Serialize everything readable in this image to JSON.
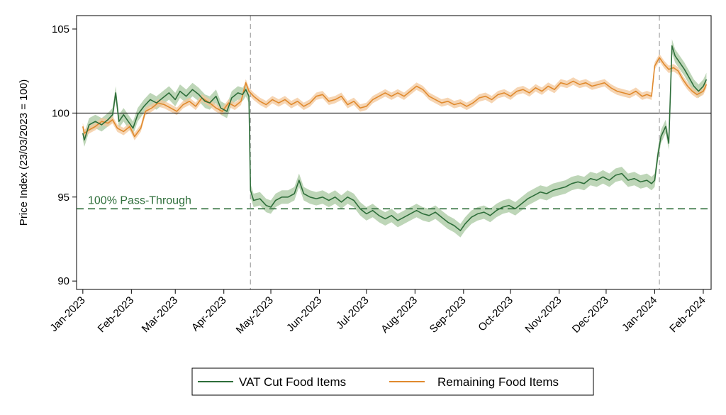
{
  "chart_data": {
    "type": "line",
    "ylabel": "Price Index (23/03/2023 = 100)",
    "xlabel": "",
    "ylim": [
      89.5,
      105.8
    ],
    "xlim": [
      "2022-12-28",
      "2024-02-06"
    ],
    "yticks": [
      90,
      95,
      100,
      105
    ],
    "xticks": [
      "2023-01-01",
      "2023-02-01",
      "2023-03-01",
      "2023-04-01",
      "2023-05-01",
      "2023-06-01",
      "2023-07-01",
      "2023-08-01",
      "2023-09-01",
      "2023-10-01",
      "2023-11-01",
      "2023-12-01",
      "2024-01-01",
      "2024-02-01"
    ],
    "xtick_labels": [
      "Jan-2023",
      "Feb-2023",
      "Mar-2023",
      "Apr-2023",
      "May-2023",
      "Jun-2023",
      "Jul-2023",
      "Aug-2023",
      "Sep-2023",
      "Oct-2023",
      "Nov-2023",
      "Dec-2023",
      "Jan-2024",
      "Feb-2024"
    ],
    "reference_line_y": 100,
    "vertical_lines": [
      "2023-04-18",
      "2024-01-04"
    ],
    "pass_through_level": 94.3,
    "annotation": "100% Pass-Through",
    "grid": false,
    "legend_position": "bottom",
    "colors": {
      "vat": "#2e6e3a",
      "vat_band": "#a8c8a0",
      "rem": "#e08a2e",
      "rem_band": "#f3c79a",
      "reference": "#000000",
      "vline": "#aaaaaa",
      "pass_through": "#2e6e3a"
    },
    "series": [
      {
        "name": "VAT Cut Food Items",
        "points": [
          [
            "2023-01-01",
            98.8
          ],
          [
            "2023-01-02",
            98.4
          ],
          [
            "2023-01-05",
            99.3
          ],
          [
            "2023-01-09",
            99.5
          ],
          [
            "2023-01-13",
            99.3
          ],
          [
            "2023-01-17",
            99.6
          ],
          [
            "2023-01-20",
            99.9
          ],
          [
            "2023-01-22",
            101.2
          ],
          [
            "2023-01-24",
            99.5
          ],
          [
            "2023-01-27",
            99.9
          ],
          [
            "2023-01-30",
            99.5
          ],
          [
            "2023-02-02",
            99.1
          ],
          [
            "2023-02-05",
            99.9
          ],
          [
            "2023-02-09",
            100.4
          ],
          [
            "2023-02-13",
            100.8
          ],
          [
            "2023-02-17",
            100.6
          ],
          [
            "2023-02-21",
            100.9
          ],
          [
            "2023-02-25",
            101.2
          ],
          [
            "2023-03-01",
            100.8
          ],
          [
            "2023-03-04",
            101.3
          ],
          [
            "2023-03-08",
            101.0
          ],
          [
            "2023-03-12",
            101.4
          ],
          [
            "2023-03-16",
            101.1
          ],
          [
            "2023-03-20",
            100.7
          ],
          [
            "2023-03-23",
            100.6
          ],
          [
            "2023-03-27",
            101.0
          ],
          [
            "2023-03-30",
            100.3
          ],
          [
            "2023-04-03",
            100.1
          ],
          [
            "2023-04-06",
            100.9
          ],
          [
            "2023-04-10",
            101.2
          ],
          [
            "2023-04-13",
            101.1
          ],
          [
            "2023-04-15",
            101.4
          ],
          [
            "2023-04-17",
            101.0
          ],
          [
            "2023-04-18",
            95.4
          ],
          [
            "2023-04-20",
            94.8
          ],
          [
            "2023-04-24",
            94.9
          ],
          [
            "2023-04-28",
            94.5
          ],
          [
            "2023-05-01",
            94.4
          ],
          [
            "2023-05-04",
            94.8
          ],
          [
            "2023-05-08",
            95.0
          ],
          [
            "2023-05-12",
            95.0
          ],
          [
            "2023-05-16",
            95.2
          ],
          [
            "2023-05-19",
            96.0
          ],
          [
            "2023-05-22",
            95.2
          ],
          [
            "2023-05-26",
            95.0
          ],
          [
            "2023-05-30",
            94.9
          ],
          [
            "2023-06-03",
            95.0
          ],
          [
            "2023-06-07",
            94.8
          ],
          [
            "2023-06-11",
            95.0
          ],
          [
            "2023-06-15",
            94.7
          ],
          [
            "2023-06-19",
            95.0
          ],
          [
            "2023-06-23",
            94.8
          ],
          [
            "2023-06-27",
            94.3
          ],
          [
            "2023-07-01",
            94.0
          ],
          [
            "2023-07-05",
            94.2
          ],
          [
            "2023-07-09",
            93.9
          ],
          [
            "2023-07-13",
            93.7
          ],
          [
            "2023-07-17",
            93.9
          ],
          [
            "2023-07-21",
            93.6
          ],
          [
            "2023-07-25",
            93.8
          ],
          [
            "2023-07-29",
            94.0
          ],
          [
            "2023-08-02",
            94.2
          ],
          [
            "2023-08-06",
            94.0
          ],
          [
            "2023-08-10",
            93.9
          ],
          [
            "2023-08-14",
            94.1
          ],
          [
            "2023-08-18",
            93.8
          ],
          [
            "2023-08-22",
            93.5
          ],
          [
            "2023-08-26",
            93.3
          ],
          [
            "2023-08-30",
            93.0
          ],
          [
            "2023-09-02",
            93.4
          ],
          [
            "2023-09-06",
            93.8
          ],
          [
            "2023-09-10",
            94.0
          ],
          [
            "2023-09-14",
            94.1
          ],
          [
            "2023-09-18",
            93.9
          ],
          [
            "2023-09-22",
            94.2
          ],
          [
            "2023-09-26",
            94.4
          ],
          [
            "2023-09-30",
            94.5
          ],
          [
            "2023-10-04",
            94.3
          ],
          [
            "2023-10-08",
            94.6
          ],
          [
            "2023-10-12",
            94.9
          ],
          [
            "2023-10-16",
            95.1
          ],
          [
            "2023-10-20",
            95.3
          ],
          [
            "2023-10-24",
            95.2
          ],
          [
            "2023-10-28",
            95.4
          ],
          [
            "2023-11-01",
            95.5
          ],
          [
            "2023-11-05",
            95.6
          ],
          [
            "2023-11-09",
            95.8
          ],
          [
            "2023-11-13",
            95.9
          ],
          [
            "2023-11-17",
            95.8
          ],
          [
            "2023-11-21",
            96.1
          ],
          [
            "2023-11-25",
            96.0
          ],
          [
            "2023-11-29",
            96.2
          ],
          [
            "2023-12-03",
            96.0
          ],
          [
            "2023-12-07",
            96.3
          ],
          [
            "2023-12-11",
            96.4
          ],
          [
            "2023-12-15",
            96.0
          ],
          [
            "2023-12-19",
            96.1
          ],
          [
            "2023-12-23",
            95.9
          ],
          [
            "2023-12-27",
            96.0
          ],
          [
            "2023-12-30",
            95.8
          ],
          [
            "2024-01-01",
            96.0
          ],
          [
            "2024-01-03",
            97.5
          ],
          [
            "2024-01-05",
            98.6
          ],
          [
            "2024-01-08",
            99.2
          ],
          [
            "2024-01-10",
            98.2
          ],
          [
            "2024-01-12",
            104.0
          ],
          [
            "2024-01-14",
            103.4
          ],
          [
            "2024-01-17",
            103.0
          ],
          [
            "2024-01-20",
            102.6
          ],
          [
            "2024-01-23",
            102.1
          ],
          [
            "2024-01-26",
            101.6
          ],
          [
            "2024-01-29",
            101.3
          ],
          [
            "2024-02-01",
            101.6
          ],
          [
            "2024-02-03",
            102.0
          ]
        ]
      },
      {
        "name": "Remaining Food Items",
        "points": [
          [
            "2023-01-01",
            99.2
          ],
          [
            "2023-01-02",
            98.8
          ],
          [
            "2023-01-05",
            99.0
          ],
          [
            "2023-01-09",
            99.2
          ],
          [
            "2023-01-13",
            99.5
          ],
          [
            "2023-01-17",
            99.4
          ],
          [
            "2023-01-20",
            99.6
          ],
          [
            "2023-01-23",
            99.1
          ],
          [
            "2023-01-27",
            98.9
          ],
          [
            "2023-01-31",
            99.2
          ],
          [
            "2023-02-03",
            98.6
          ],
          [
            "2023-02-07",
            99.1
          ],
          [
            "2023-02-10",
            100.1
          ],
          [
            "2023-02-14",
            100.3
          ],
          [
            "2023-02-18",
            100.6
          ],
          [
            "2023-02-22",
            100.5
          ],
          [
            "2023-02-26",
            100.3
          ],
          [
            "2023-03-02",
            100.1
          ],
          [
            "2023-03-06",
            100.5
          ],
          [
            "2023-03-10",
            100.7
          ],
          [
            "2023-03-14",
            100.4
          ],
          [
            "2023-03-18",
            100.9
          ],
          [
            "2023-03-23",
            100.6
          ],
          [
            "2023-03-27",
            100.3
          ],
          [
            "2023-03-31",
            100.1
          ],
          [
            "2023-04-04",
            100.6
          ],
          [
            "2023-04-08",
            100.4
          ],
          [
            "2023-04-12",
            100.7
          ],
          [
            "2023-04-15",
            101.8
          ],
          [
            "2023-04-17",
            101.3
          ],
          [
            "2023-04-20",
            101.0
          ],
          [
            "2023-04-24",
            100.7
          ],
          [
            "2023-04-28",
            100.5
          ],
          [
            "2023-05-02",
            100.8
          ],
          [
            "2023-05-06",
            100.6
          ],
          [
            "2023-05-10",
            100.8
          ],
          [
            "2023-05-14",
            100.5
          ],
          [
            "2023-05-18",
            100.7
          ],
          [
            "2023-05-22",
            100.4
          ],
          [
            "2023-05-26",
            100.6
          ],
          [
            "2023-05-30",
            101.0
          ],
          [
            "2023-06-03",
            101.1
          ],
          [
            "2023-06-07",
            100.7
          ],
          [
            "2023-06-11",
            100.8
          ],
          [
            "2023-06-15",
            101.0
          ],
          [
            "2023-06-19",
            100.5
          ],
          [
            "2023-06-23",
            100.7
          ],
          [
            "2023-06-27",
            100.3
          ],
          [
            "2023-07-01",
            100.4
          ],
          [
            "2023-07-05",
            100.8
          ],
          [
            "2023-07-09",
            101.0
          ],
          [
            "2023-07-13",
            101.2
          ],
          [
            "2023-07-17",
            101.0
          ],
          [
            "2023-07-21",
            101.2
          ],
          [
            "2023-07-25",
            101.0
          ],
          [
            "2023-07-29",
            101.3
          ],
          [
            "2023-08-02",
            101.6
          ],
          [
            "2023-08-06",
            101.4
          ],
          [
            "2023-08-10",
            101.0
          ],
          [
            "2023-08-14",
            100.8
          ],
          [
            "2023-08-18",
            100.6
          ],
          [
            "2023-08-22",
            100.7
          ],
          [
            "2023-08-26",
            100.5
          ],
          [
            "2023-08-30",
            100.6
          ],
          [
            "2023-09-03",
            100.4
          ],
          [
            "2023-09-07",
            100.6
          ],
          [
            "2023-09-11",
            100.9
          ],
          [
            "2023-09-15",
            101.0
          ],
          [
            "2023-09-19",
            100.8
          ],
          [
            "2023-09-23",
            101.1
          ],
          [
            "2023-09-27",
            101.2
          ],
          [
            "2023-10-01",
            101.0
          ],
          [
            "2023-10-05",
            101.3
          ],
          [
            "2023-10-09",
            101.4
          ],
          [
            "2023-10-13",
            101.2
          ],
          [
            "2023-10-17",
            101.5
          ],
          [
            "2023-10-21",
            101.3
          ],
          [
            "2023-10-25",
            101.6
          ],
          [
            "2023-10-29",
            101.4
          ],
          [
            "2023-11-02",
            101.8
          ],
          [
            "2023-11-06",
            101.7
          ],
          [
            "2023-11-10",
            101.9
          ],
          [
            "2023-11-14",
            101.7
          ],
          [
            "2023-11-18",
            101.8
          ],
          [
            "2023-11-22",
            101.6
          ],
          [
            "2023-11-26",
            101.7
          ],
          [
            "2023-11-30",
            101.8
          ],
          [
            "2023-12-04",
            101.5
          ],
          [
            "2023-12-08",
            101.3
          ],
          [
            "2023-12-12",
            101.2
          ],
          [
            "2023-12-16",
            101.1
          ],
          [
            "2023-12-20",
            101.3
          ],
          [
            "2023-12-24",
            101.0
          ],
          [
            "2023-12-27",
            101.1
          ],
          [
            "2023-12-30",
            101.0
          ],
          [
            "2024-01-01",
            102.8
          ],
          [
            "2024-01-04",
            103.3
          ],
          [
            "2024-01-07",
            102.9
          ],
          [
            "2024-01-10",
            102.6
          ],
          [
            "2024-01-13",
            102.7
          ],
          [
            "2024-01-16",
            102.5
          ],
          [
            "2024-01-19",
            102.0
          ],
          [
            "2024-01-22",
            101.6
          ],
          [
            "2024-01-25",
            101.3
          ],
          [
            "2024-01-28",
            101.1
          ],
          [
            "2024-02-01",
            101.3
          ],
          [
            "2024-02-03",
            101.7
          ]
        ]
      }
    ]
  },
  "legend": {
    "items": [
      {
        "label": "VAT Cut Food Items",
        "color": "#2e6e3a"
      },
      {
        "label": "Remaining Food Items",
        "color": "#e08a2e"
      }
    ]
  }
}
